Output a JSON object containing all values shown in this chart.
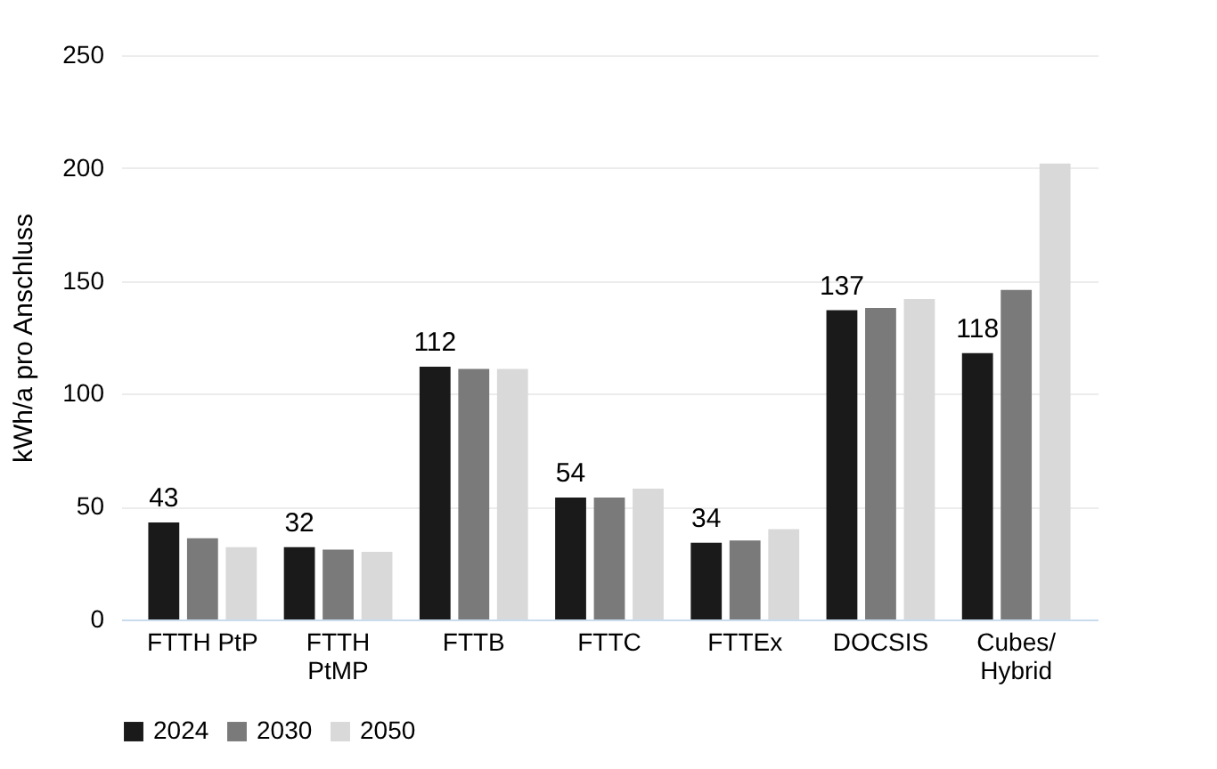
{
  "chart_data": {
    "type": "bar",
    "ylabel": "kWh/a pro Anschluss",
    "categories": [
      "FTTH PtP",
      "FTTH PtMP",
      "FTTB",
      "FTTC",
      "FTTEx",
      "DOCSIS",
      "Cubes/Hybrid"
    ],
    "series": [
      {
        "name": "2024",
        "color": "#1a1a1a",
        "values": [
          43,
          32,
          112,
          54,
          34,
          137,
          118
        ],
        "value_labels": [
          "43",
          "32",
          "112",
          "54",
          "34",
          "137",
          "118"
        ]
      },
      {
        "name": "2030",
        "color": "#7a7a7a",
        "values": [
          36,
          31,
          111,
          54,
          35,
          138,
          146
        ]
      },
      {
        "name": "2050",
        "color": "#d9d9d9",
        "values": [
          32,
          30,
          111,
          58,
          40,
          142,
          202
        ]
      }
    ],
    "ylim": [
      0,
      250
    ],
    "yticks": [
      0,
      50,
      100,
      150,
      200,
      250
    ],
    "grid": "y",
    "legend": "bottom"
  }
}
